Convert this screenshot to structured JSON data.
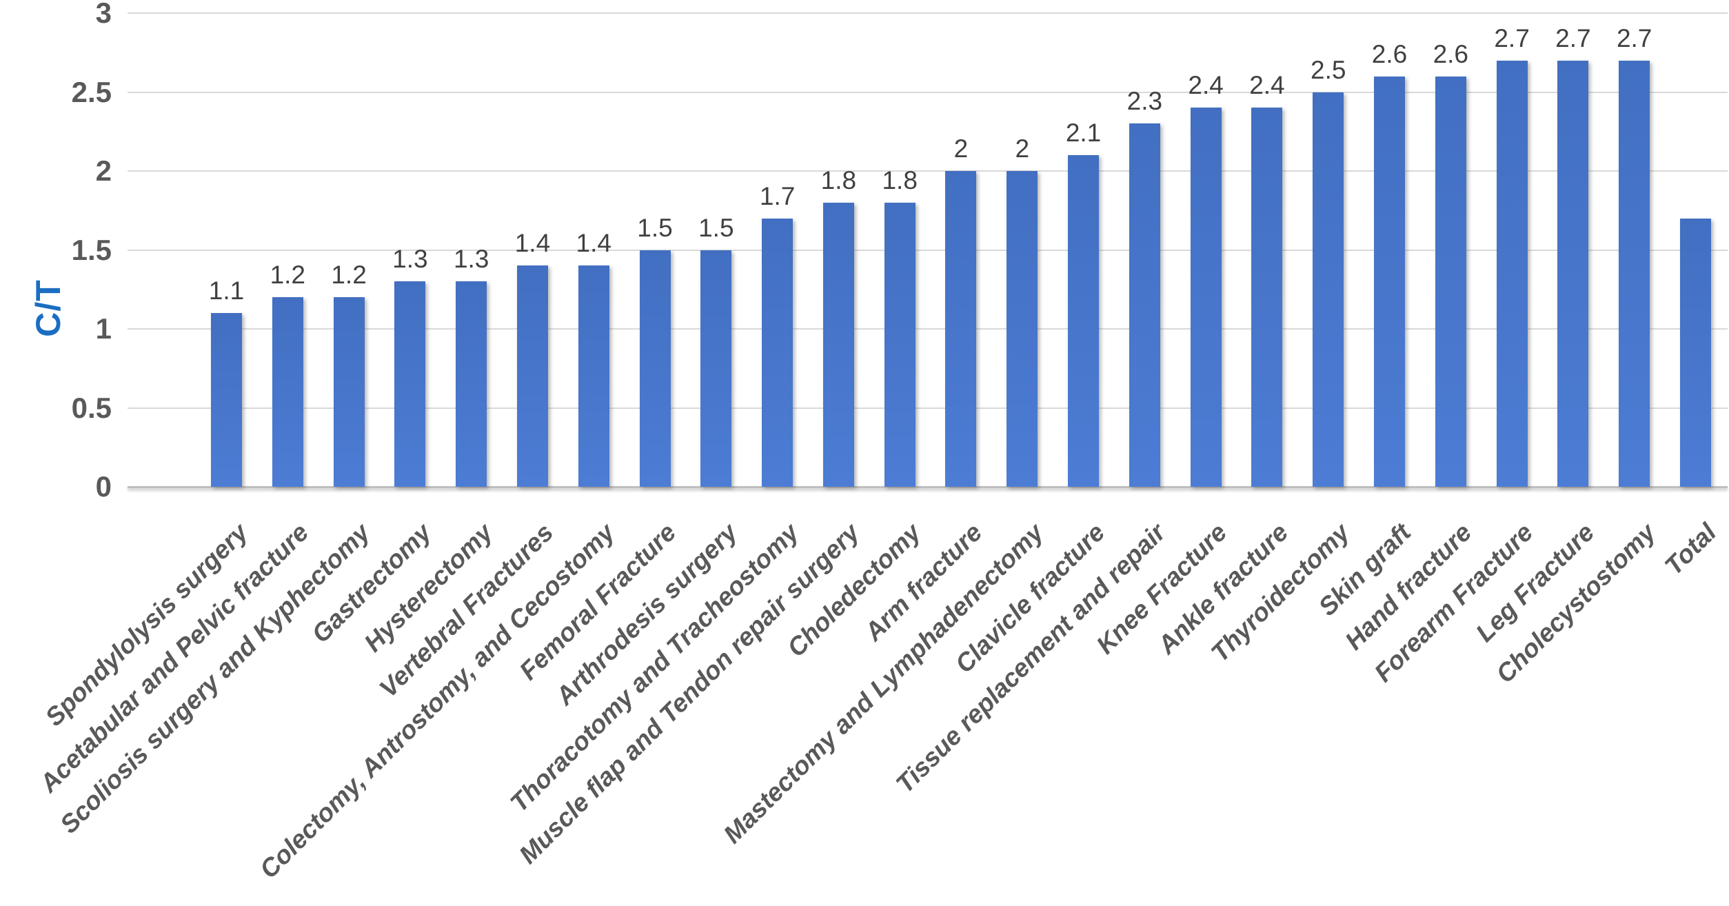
{
  "chart_data": {
    "type": "bar",
    "title": "",
    "xlabel": "",
    "ylabel": "C/T",
    "ylim": [
      0,
      3
    ],
    "yticks": [
      0,
      0.5,
      1,
      1.5,
      2,
      2.5,
      3
    ],
    "grid": true,
    "legend": "none",
    "categories": [
      "Spondylolysis surgery",
      "Acetabular and Pelvic fracture",
      "Scoliosis surgery and Kyphectomy",
      "Gastrectomy",
      "Hysterectomy",
      "Vertebral Fractures",
      "Colectomy, Antrostomy, and Cecostomy",
      "Femoral Fracture",
      "Arthrodesis surgery",
      "Thoracotomy and Tracheostomy",
      "Muscle flap and Tendon repair surgery",
      "Choledectomy",
      "Arm fracture",
      "Mastectomy and Lymphadenectomy",
      "Clavicle fracture",
      "Tissue replacement and repair",
      "Knee Fracture",
      "Ankle fracture",
      "Thyroidectomy",
      "Skin graft",
      "Hand fracture",
      "Forearm Fracture",
      "Leg Fracture",
      "Cholecystostomy",
      "Total"
    ],
    "values": [
      1.1,
      1.2,
      1.2,
      1.3,
      1.3,
      1.4,
      1.4,
      1.5,
      1.5,
      1.7,
      1.8,
      1.8,
      2,
      2,
      2.1,
      2.3,
      2.4,
      2.4,
      2.5,
      2.6,
      2.6,
      2.7,
      2.7,
      2.7,
      1.7
    ],
    "data_labels": [
      "1.1",
      "1.2",
      "1.2",
      "1.3",
      "1.3",
      "1.4",
      "1.4",
      "1.5",
      "1.5",
      "1.7",
      "1.8",
      "1.8",
      "2",
      "2",
      "2.1",
      "2.3",
      "2.4",
      "2.4",
      "2.5",
      "2.6",
      "2.6",
      "2.7",
      "2.7",
      "2.7",
      null
    ]
  },
  "colors": {
    "bar_top": "#426fc1",
    "bar_bottom": "#4c7cd4",
    "gridline": "#d9d9d9",
    "axis_line": "#bfbfbf",
    "tick_label": "#595959",
    "category_label": "#595959",
    "data_label": "#404040",
    "y_axis_title": "#1b6ec2"
  }
}
